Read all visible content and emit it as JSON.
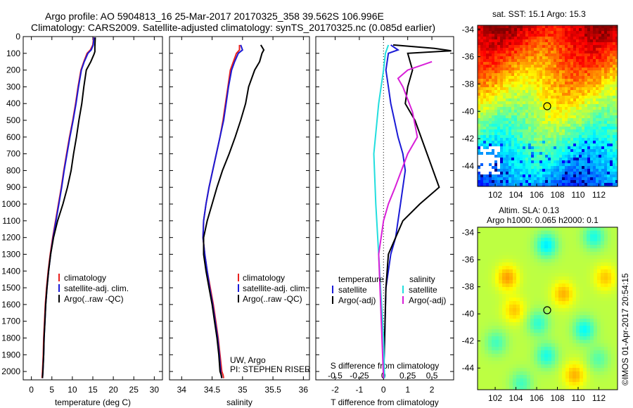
{
  "header": {
    "title_line1": "Argo profile: AO 5904813_16 25-Mar-2017 20170325_358 39.562S 106.996E",
    "title_line2": "Climatology: CARS2009. Satellite-adjusted climatology: synTS_20170325.nc (0.085d earlier)"
  },
  "colors": {
    "climatology": "#e8201e",
    "satellite": "#1a1ad6",
    "argo": "#000000",
    "sal_satellite": "#22dede",
    "sal_argo": "#d81fd8"
  },
  "chart_data": [
    {
      "id": "temperature",
      "type": "line",
      "xlabel": "temperature (deg C)",
      "ylabel": "",
      "xlim": [
        -2,
        32
      ],
      "ylim": [
        2050,
        0
      ],
      "xticks": [
        "0",
        "5",
        "10",
        "15",
        "20",
        "25",
        "30"
      ],
      "yticks": [
        "0",
        "100",
        "200",
        "300",
        "400",
        "500",
        "600",
        "700",
        "800",
        "900",
        "1000",
        "1100",
        "1200",
        "1300",
        "1400",
        "1500",
        "1600",
        "1700",
        "1800",
        "1900",
        "2000"
      ],
      "legend": [
        "climatology",
        "satellite-adj. clim.",
        "Argo(..raw -QC)"
      ],
      "series": [
        {
          "name": "climatology",
          "x": [
            15.2,
            15.0,
            14.4,
            13.6,
            12.8,
            12.1,
            11.4,
            10.8,
            10.1,
            9.3,
            8.6,
            7.9,
            7.3,
            6.6,
            5.9,
            5.2,
            4.6,
            4.1,
            3.7,
            3.4,
            3.2,
            3.0,
            2.9,
            2.7,
            2.6
          ],
          "y": [
            5,
            50,
            80,
            100,
            150,
            200,
            300,
            400,
            500,
            600,
            700,
            800,
            900,
            1000,
            1100,
            1200,
            1300,
            1400,
            1500,
            1600,
            1700,
            1800,
            1900,
            2000,
            2040
          ]
        },
        {
          "name": "satellite-adj. clim.",
          "x": [
            15.3,
            15.1,
            14.6,
            13.8,
            12.9,
            12.2,
            11.5,
            10.9,
            10.2,
            9.4,
            8.7,
            8.0,
            7.4,
            6.7,
            6.0,
            5.3,
            4.7,
            4.2,
            3.8,
            3.5,
            3.3,
            3.1,
            3.0,
            2.8,
            2.7
          ],
          "y": [
            5,
            50,
            80,
            100,
            150,
            200,
            300,
            400,
            500,
            600,
            700,
            800,
            900,
            1000,
            1100,
            1200,
            1300,
            1400,
            1500,
            1600,
            1700,
            1800,
            1900,
            2000,
            2040
          ]
        },
        {
          "name": "Argo(..raw -QC)",
          "x": [
            15.6,
            15.5,
            15.5,
            15.3,
            14.5,
            13.4,
            12.8,
            12.3,
            11.6,
            11.0,
            10.3,
            9.7,
            8.8,
            7.7,
            6.4,
            5.4,
            4.7,
            4.2,
            3.8,
            3.5,
            3.3,
            3.1,
            3.0,
            2.8,
            2.7
          ],
          "y": [
            5,
            60,
            90,
            105,
            150,
            200,
            300,
            400,
            500,
            600,
            700,
            800,
            900,
            1000,
            1100,
            1200,
            1300,
            1400,
            1500,
            1600,
            1700,
            1800,
            1900,
            2000,
            2040
          ]
        }
      ]
    },
    {
      "id": "salinity",
      "type": "line",
      "xlabel": "salinity",
      "ylabel": "",
      "xlim": [
        33.8,
        36.1
      ],
      "ylim": [
        2050,
        0
      ],
      "xticks": [
        "34",
        "34.5",
        "35",
        "35.5",
        "36"
      ],
      "legend": [
        "climatology",
        "satellite-adj. clim.",
        "Argo(..raw -QC)"
      ],
      "annotation": [
        "UW, Argo",
        "PI: STEPHEN RISER"
      ],
      "series": [
        {
          "name": "climatology",
          "x": [
            34.95,
            34.95,
            34.9,
            34.85,
            34.8,
            34.76,
            34.72,
            34.68,
            34.63,
            34.57,
            34.51,
            34.45,
            34.4,
            34.36,
            34.35,
            34.38,
            34.42,
            34.47,
            34.52,
            34.56,
            34.6,
            34.63,
            34.66,
            34.68,
            34.69
          ],
          "y": [
            50,
            80,
            100,
            150,
            200,
            300,
            400,
            500,
            600,
            700,
            800,
            900,
            1000,
            1100,
            1200,
            1300,
            1400,
            1500,
            1600,
            1700,
            1800,
            1900,
            2000,
            2020,
            2040
          ]
        },
        {
          "name": "satellite-adj. clim.",
          "x": [
            34.97,
            35.0,
            34.93,
            34.87,
            34.82,
            34.77,
            34.73,
            34.69,
            34.63,
            34.57,
            34.51,
            34.45,
            34.4,
            34.36,
            34.35,
            34.38,
            34.42,
            34.46,
            34.51,
            34.55,
            34.59,
            34.62,
            34.64,
            34.65,
            34.66
          ],
          "y": [
            50,
            80,
            100,
            150,
            200,
            300,
            400,
            500,
            600,
            700,
            800,
            900,
            1000,
            1100,
            1200,
            1300,
            1400,
            1500,
            1600,
            1700,
            1800,
            1900,
            2000,
            2020,
            2040
          ]
        },
        {
          "name": "Argo(..raw -QC)",
          "x": [
            35.3,
            35.35,
            35.32,
            35.28,
            35.2,
            35.1,
            35.05,
            34.97,
            34.88,
            34.78,
            34.67,
            34.58,
            34.5,
            34.42,
            34.36,
            34.36,
            34.4,
            34.45,
            34.5,
            34.54,
            34.58,
            34.61,
            34.63,
            34.65,
            34.66
          ],
          "y": [
            50,
            80,
            100,
            150,
            200,
            300,
            400,
            500,
            600,
            700,
            800,
            900,
            1000,
            1100,
            1200,
            1300,
            1400,
            1500,
            1600,
            1700,
            1800,
            1900,
            2000,
            2020,
            2040
          ]
        }
      ]
    },
    {
      "id": "difference",
      "type": "line",
      "xlabel": "T difference from climatology",
      "xlabel_top": "S difference from climatology",
      "xlim": [
        -2.8,
        2.9
      ],
      "ylim": [
        2050,
        0
      ],
      "xticks": [
        "-2",
        "-1",
        "0",
        "1",
        "2"
      ],
      "xticks_top": [
        "-0.5",
        "-0.25",
        "0",
        "0.25",
        "0.5"
      ],
      "legend_titles": [
        "temperature",
        "salinity"
      ],
      "legend": [
        "satellite",
        "Argo(-adj)",
        "satellite",
        "Argo(-adj)"
      ],
      "series": [
        {
          "name": "T satellite",
          "x": [
            0.3,
            0.6,
            0.2,
            0.1,
            0.2,
            0.3,
            0.45,
            0.6,
            0.8,
            0.9,
            0.8,
            0.7,
            0.6,
            0.5,
            0.3,
            0.1,
            0.05,
            0.0
          ],
          "y": [
            50,
            80,
            100,
            200,
            300,
            400,
            500,
            600,
            700,
            800,
            900,
            1000,
            1100,
            1200,
            1300,
            1500,
            1800,
            2040
          ]
        },
        {
          "name": "T Argo(-adj)",
          "x": [
            0.4,
            2.1,
            2.8,
            1.0,
            1.2,
            1.0,
            0.9,
            1.3,
            1.8,
            2.3,
            1.5,
            0.8,
            0.5,
            0.2,
            0.1,
            0.0
          ],
          "y": [
            50,
            70,
            85,
            100,
            200,
            300,
            400,
            500,
            700,
            900,
            1000,
            1100,
            1200,
            1300,
            1500,
            2040
          ]
        },
        {
          "name": "S satellite",
          "x": [
            0.05,
            0.02,
            0.0,
            -0.05,
            -0.1,
            -0.08,
            -0.05,
            -0.02,
            0.0,
            0.01
          ],
          "y": [
            50,
            100,
            200,
            400,
            700,
            1000,
            1300,
            1600,
            1800,
            2040
          ]
        },
        {
          "name": "S Argo(-adj)",
          "x": [
            0.5,
            0.25,
            0.15,
            0.2,
            0.3,
            0.35,
            0.25,
            0.12,
            0.05,
            0.0,
            -0.05,
            0.0
          ],
          "y": [
            150,
            200,
            250,
            300,
            450,
            600,
            700,
            900,
            1000,
            1100,
            1300,
            2040
          ]
        }
      ]
    }
  ],
  "maps": {
    "sst": {
      "title": "sat. SST: 15.1  Argo: 15.3",
      "xticks": [
        "102",
        "104",
        "106",
        "108",
        "110",
        "112"
      ],
      "yticks": [
        "-34",
        "-36",
        "-38",
        "-40",
        "-42",
        "-44"
      ]
    },
    "sla": {
      "title_line1": "Altim. SLA: 0.13",
      "title_line2": "Argo h1000: 0.065 h2000: 0.1",
      "xticks": [
        "102",
        "104",
        "106",
        "108",
        "110",
        "112"
      ],
      "yticks": [
        "-34",
        "-36",
        "-38",
        "-40",
        "-42",
        "-44"
      ]
    }
  },
  "credit": "©IMOS 01-Apr-2017 20:54:15"
}
